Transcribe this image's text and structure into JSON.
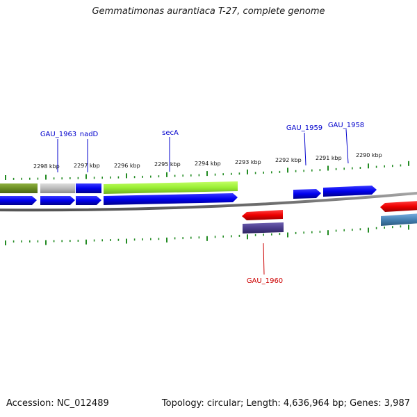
{
  "title": "Gemmatimonas aurantiaca T-27, complete genome",
  "footer": {
    "accession": "Accession: NC_012489",
    "summary": "Topology: circular; Length: 4,636,964 bp; Genes: 3,987"
  },
  "kbp_labels": [
    "2298 kbp",
    "2297 kbp",
    "2296 kbp",
    "2295 kbp",
    "2294 kbp",
    "2293 kbp",
    "2292 kbp",
    "2291 kbp",
    "2290 kbp"
  ],
  "gene_labels_top": [
    "GAU_1963",
    "nadD",
    "secA",
    "GAU_1959",
    "GAU_1958"
  ],
  "gene_labels_bottom": [
    "GAU_1960"
  ],
  "colors": {
    "label_blue": "#0000cc",
    "label_red": "#cc0000",
    "tick_green": "#228b22",
    "backbone": "#777777",
    "gene_blue": "#0000ee",
    "gene_red": "#ee0000",
    "gene_olive": "#6b8e23",
    "gene_lime": "#99ee33",
    "gene_grey": "#bbbbbb",
    "gene_navy": "#4b3c8c",
    "gene_steel": "#4682b4"
  }
}
